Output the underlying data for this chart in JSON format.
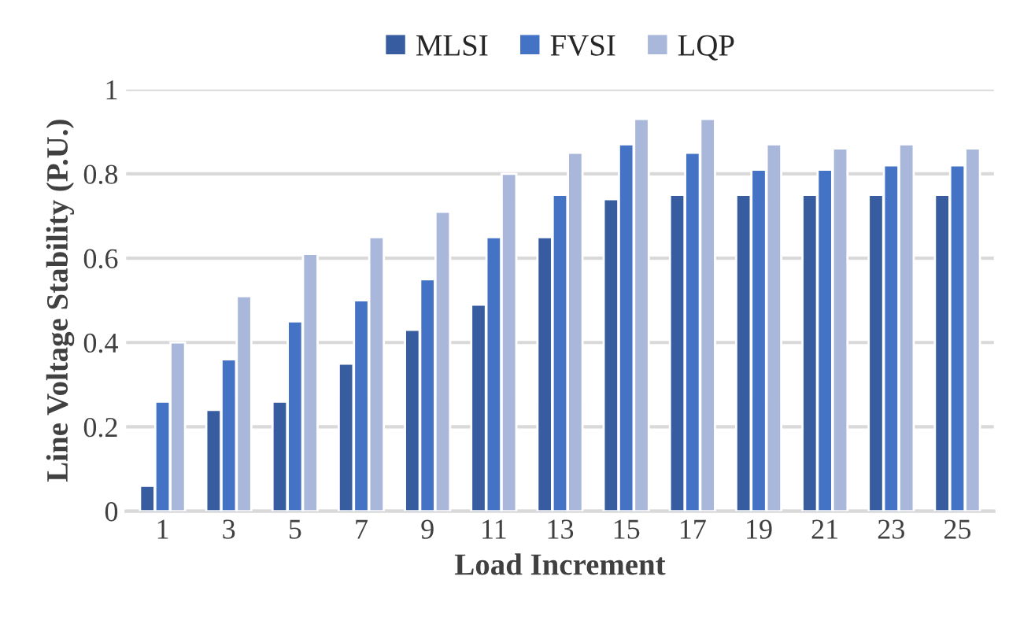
{
  "chart_data": {
    "type": "bar",
    "xlabel": "Load Increment",
    "ylabel": "Line Voltage Stability (P.U.)",
    "categories": [
      "1",
      "3",
      "5",
      "7",
      "9",
      "11",
      "13",
      "15",
      "17",
      "19",
      "21",
      "23",
      "25"
    ],
    "series": [
      {
        "name": "MLSI",
        "color": "#375c9f",
        "values": [
          0.06,
          0.24,
          0.26,
          0.35,
          0.43,
          0.49,
          0.65,
          0.74,
          0.75,
          0.75,
          0.75,
          0.75,
          0.75
        ]
      },
      {
        "name": "FVSI",
        "color": "#4472c4",
        "values": [
          0.26,
          0.36,
          0.45,
          0.5,
          0.55,
          0.65,
          0.75,
          0.87,
          0.85,
          0.81,
          0.81,
          0.82,
          0.82
        ]
      },
      {
        "name": "LQP",
        "color": "#a9b7db",
        "values": [
          0.4,
          0.51,
          0.61,
          0.65,
          0.71,
          0.8,
          0.85,
          0.93,
          0.93,
          0.87,
          0.86,
          0.87,
          0.86
        ]
      }
    ],
    "ylim": [
      0,
      1
    ],
    "yticks": [
      0,
      0.2,
      0.4,
      0.6,
      0.8,
      1
    ],
    "grid": "y",
    "legend": "top"
  }
}
